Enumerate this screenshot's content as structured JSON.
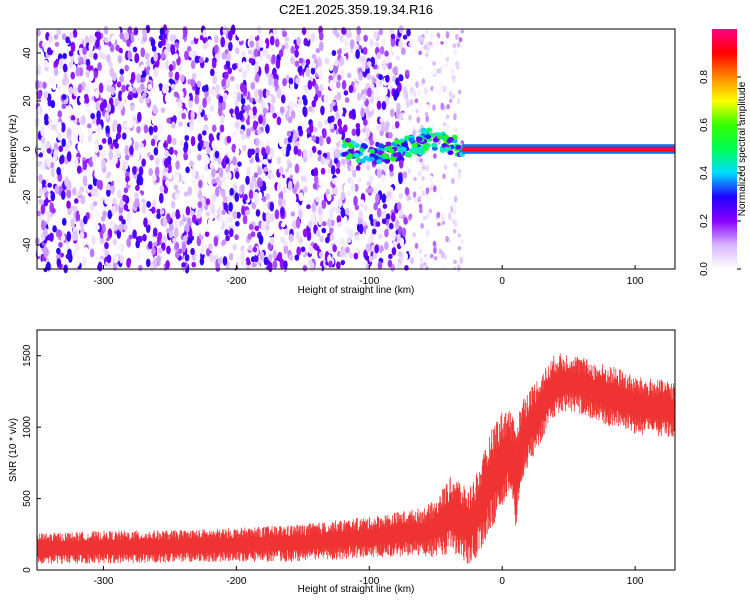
{
  "title": "C2E1.2025.359.19.34.R16",
  "chart_data": [
    {
      "type": "heatmap",
      "xlabel": "Height of straight line (km)",
      "ylabel": "Frequency (Hz)",
      "xlim": [
        -350,
        130
      ],
      "ylim": [
        -50,
        50
      ],
      "xticks": [
        -300,
        -200,
        -100,
        0,
        100
      ],
      "yticks": [
        -40,
        -20,
        0,
        20,
        40
      ],
      "colorbar": {
        "label": "Normalized spectral amplitude",
        "range": [
          0,
          1
        ],
        "ticks": [
          "0.0",
          "0.2",
          "0.4",
          "0.6",
          "0.8"
        ],
        "colors": [
          "#ffffff",
          "#d7b6ff",
          "#8800ff",
          "#2200ff",
          "#00ddff",
          "#00ff55",
          "#33ff00",
          "#ffff00",
          "#ff8800",
          "#ff0000",
          "#ff0088"
        ]
      },
      "regions": [
        {
          "description_x_range": [
            -350,
            -70
          ],
          "frequency_range": [
            -50,
            50
          ],
          "amplitude_range": [
            0.0,
            0.3
          ]
        },
        {
          "description_x_range": [
            -70,
            -30
          ],
          "frequency_range": [
            -50,
            50
          ],
          "amplitude_range": [
            0.0,
            0.15
          ]
        },
        {
          "description_x_range": [
            -120,
            -30
          ],
          "frequency_range": [
            -6,
            6
          ],
          "amplitude_range": [
            0.3,
            0.6
          ]
        },
        {
          "description_x_range": [
            -30,
            130
          ],
          "frequency_range": [
            -1,
            1
          ],
          "amplitude_range": [
            0.8,
            1.0
          ]
        }
      ]
    },
    {
      "type": "line",
      "xlabel": "Height of straight line (km)",
      "ylabel": "SNR (10 * v/v)",
      "xlim": [
        -350,
        130
      ],
      "ylim": [
        0,
        1680
      ],
      "xticks": [
        -300,
        -200,
        -100,
        0,
        100
      ],
      "yticks": [
        0,
        500,
        1000,
        1500
      ],
      "series": [
        {
          "color": "#ee3333",
          "x": [
            -350,
            -300,
            -250,
            -200,
            -150,
            -100,
            -80,
            -60,
            -50,
            -45,
            -40,
            -35,
            -30,
            -25,
            -20,
            -15,
            -10,
            -5,
            0,
            5,
            10,
            15,
            20,
            30,
            40,
            50,
            60,
            70,
            80,
            90,
            100,
            110,
            120,
            130
          ],
          "mean": [
            150,
            160,
            165,
            175,
            190,
            230,
            250,
            270,
            290,
            330,
            380,
            390,
            330,
            300,
            380,
            470,
            600,
            700,
            780,
            850,
            650,
            900,
            1000,
            1150,
            1300,
            1320,
            1290,
            1250,
            1220,
            1190,
            1150,
            1140,
            1130,
            1120
          ],
          "spread": [
            90,
            95,
            95,
            100,
            110,
            120,
            130,
            140,
            170,
            200,
            220,
            240,
            220,
            230,
            250,
            260,
            280,
            300,
            280,
            260,
            300,
            260,
            220,
            200,
            180,
            170,
            170,
            170,
            180,
            180,
            170,
            170,
            170,
            170
          ]
        }
      ]
    }
  ]
}
